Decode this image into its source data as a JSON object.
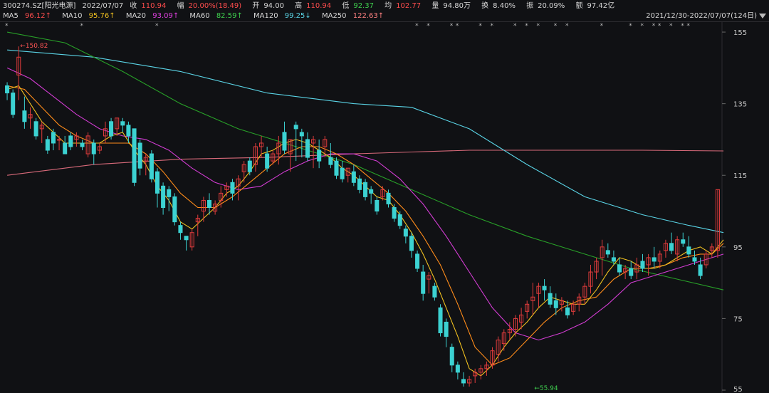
{
  "header": {
    "symbol": "300274.SZ[阳光电源]",
    "date": "2022/07/07",
    "close_label": "收",
    "close_value": "110.94",
    "change_label": "幅",
    "change_value": "20.00%(18.49)",
    "open_label": "开",
    "open_value": "94.00",
    "high_label": "高",
    "high_value": "110.94",
    "low_label": "低",
    "low_value": "92.37",
    "avg_label": "均",
    "avg_value": "102.77",
    "volume_label": "量",
    "volume_value": "94.80万",
    "turnover_label": "换",
    "turnover_value": "8.40%",
    "amplitude_label": "振",
    "amplitude_value": "20.09%",
    "amount_label": "额",
    "amount_value": "97.42亿",
    "range_text": "2021/12/30-2022/07/07(124日)"
  },
  "ma_legend": [
    {
      "name": "MA5",
      "value": "96.12↑",
      "color": "#ff4d4d"
    },
    {
      "name": "MA10",
      "value": "95.76↑",
      "color": "#f0c020"
    },
    {
      "name": "MA20",
      "value": "93.09↑",
      "color": "#e040e0"
    },
    {
      "name": "MA60",
      "value": "82.59↑",
      "color": "#2ecc40"
    },
    {
      "name": "MA120",
      "value": "99.25↓",
      "color": "#5ad4e6"
    },
    {
      "name": "MA250",
      "value": "122.63↑",
      "color": "#ff8080"
    }
  ],
  "colors": {
    "up": "#e03c3c",
    "down": "#3cd2d2",
    "ma5": "#f0c020",
    "ma10": "#ff8c1a",
    "ma20": "#d23cd2",
    "ma60": "#28a028",
    "ma120": "#5ad4e6",
    "ma250": "#d96a7a"
  },
  "chart_data": {
    "type": "candlestick",
    "y_ticks": [
      "155",
      "135",
      "115",
      "95",
      "75",
      "55"
    ],
    "ylim": [
      55,
      157
    ],
    "annotations": [
      {
        "text": "←150.82",
        "value": 150.82,
        "index": 2
      },
      {
        "text": "←55.94",
        "value": 55.94,
        "index": 91
      }
    ],
    "candles": [
      [
        140,
        141,
        136,
        138
      ],
      [
        138,
        139,
        131,
        132
      ],
      [
        143,
        151,
        136,
        148
      ],
      [
        133,
        137,
        128,
        130
      ],
      [
        131,
        134,
        128,
        132
      ],
      [
        130,
        131,
        125,
        126
      ],
      [
        128,
        130,
        124,
        129
      ],
      [
        125,
        126,
        121,
        122
      ],
      [
        127,
        128,
        122,
        124
      ],
      [
        125,
        126,
        122,
        125
      ],
      [
        124,
        126,
        121,
        121
      ],
      [
        126,
        127,
        122,
        123
      ],
      [
        125,
        127,
        123,
        126
      ],
      [
        124,
        125,
        122,
        123
      ],
      [
        121,
        127,
        120,
        126
      ],
      [
        124,
        125,
        118,
        121
      ],
      [
        122,
        124,
        121,
        123
      ],
      [
        126,
        130,
        124,
        128
      ],
      [
        130,
        131,
        125,
        126
      ],
      [
        128,
        131,
        126,
        131
      ],
      [
        130,
        131,
        127,
        129
      ],
      [
        129,
        130,
        124,
        126
      ],
      [
        128,
        128,
        112,
        113
      ],
      [
        124,
        125,
        115,
        117
      ],
      [
        119,
        121,
        115,
        120
      ],
      [
        121,
        122,
        113,
        114
      ],
      [
        116,
        117,
        106,
        110
      ],
      [
        112,
        113,
        104,
        106
      ],
      [
        111,
        112,
        105,
        109
      ],
      [
        109,
        110,
        101,
        102
      ],
      [
        101,
        102,
        97,
        99
      ],
      [
        98,
        98,
        94,
        97
      ],
      [
        95,
        100,
        94,
        99
      ],
      [
        102,
        104,
        98,
        103
      ],
      [
        105,
        109,
        102,
        108
      ],
      [
        108,
        110,
        104,
        106
      ],
      [
        105,
        108,
        104,
        107
      ],
      [
        108,
        112,
        106,
        110
      ],
      [
        111,
        113,
        109,
        112
      ],
      [
        113,
        114,
        108,
        110
      ],
      [
        112,
        115,
        108,
        114
      ],
      [
        116,
        119,
        113,
        118
      ],
      [
        119,
        120,
        115,
        116
      ],
      [
        118,
        124,
        116,
        123
      ],
      [
        123,
        126,
        120,
        124
      ],
      [
        121,
        123,
        116,
        117
      ],
      [
        119,
        122,
        118,
        121
      ],
      [
        121,
        126,
        118,
        124
      ],
      [
        127,
        130,
        121,
        122
      ],
      [
        121,
        125,
        116,
        125
      ],
      [
        129,
        130,
        119,
        128
      ],
      [
        127,
        128,
        120,
        126
      ],
      [
        125,
        127,
        119,
        120
      ],
      [
        124,
        126,
        117,
        125
      ],
      [
        122,
        125,
        117,
        119
      ],
      [
        123,
        126,
        120,
        125
      ],
      [
        120,
        124,
        117,
        118
      ],
      [
        119,
        120,
        114,
        115
      ],
      [
        117,
        119,
        113,
        114
      ],
      [
        115,
        117,
        113,
        117
      ],
      [
        116,
        118,
        112,
        113
      ],
      [
        114,
        115,
        110,
        111
      ],
      [
        113,
        114,
        108,
        109
      ],
      [
        111,
        112,
        107,
        110
      ],
      [
        108,
        109,
        104,
        105
      ],
      [
        109,
        112,
        108,
        111
      ],
      [
        110,
        111,
        106,
        107
      ],
      [
        106,
        107,
        102,
        103
      ],
      [
        104,
        105,
        100,
        101
      ],
      [
        100,
        101,
        96,
        98
      ],
      [
        98,
        99,
        92,
        94
      ],
      [
        93,
        94,
        88,
        89
      ],
      [
        88,
        90,
        80,
        82
      ],
      [
        86,
        88,
        82,
        87
      ],
      [
        84,
        85,
        80,
        81
      ],
      [
        78,
        79,
        70,
        71
      ],
      [
        74,
        75,
        67,
        70
      ],
      [
        67,
        68,
        60,
        62
      ],
      [
        62,
        63,
        58,
        60
      ],
      [
        58,
        60,
        56,
        57
      ],
      [
        57,
        59,
        56,
        58
      ],
      [
        59,
        61,
        57,
        60
      ],
      [
        60,
        62,
        58,
        61
      ],
      [
        61,
        63,
        59,
        62
      ],
      [
        62,
        67,
        61,
        66
      ],
      [
        65,
        70,
        63,
        69
      ],
      [
        68,
        72,
        66,
        71
      ],
      [
        71,
        74,
        69,
        72
      ],
      [
        72,
        76,
        70,
        75
      ],
      [
        74,
        78,
        72,
        76
      ],
      [
        77,
        80,
        75,
        79
      ],
      [
        80,
        85,
        76,
        81
      ],
      [
        82,
        85,
        78,
        84
      ],
      [
        84,
        86,
        80,
        83
      ],
      [
        82,
        84,
        78,
        79
      ],
      [
        80,
        82,
        76,
        78
      ],
      [
        79,
        81,
        77,
        80
      ],
      [
        78,
        80,
        75,
        76
      ],
      [
        77,
        80,
        76,
        79
      ],
      [
        79,
        82,
        77,
        81
      ],
      [
        81,
        85,
        79,
        84
      ],
      [
        84,
        90,
        82,
        88
      ],
      [
        88,
        92,
        86,
        91
      ],
      [
        92,
        97,
        87,
        95
      ],
      [
        94,
        96,
        92,
        93
      ],
      [
        92,
        94,
        90,
        91
      ],
      [
        90,
        92,
        87,
        88
      ],
      [
        88,
        90,
        86,
        89
      ],
      [
        89,
        91,
        86,
        87
      ],
      [
        88,
        92,
        86,
        90
      ],
      [
        91,
        93,
        88,
        89
      ],
      [
        90,
        93,
        87,
        92
      ],
      [
        92,
        95,
        89,
        91
      ],
      [
        91,
        94,
        89,
        93
      ],
      [
        94,
        97,
        92,
        96
      ],
      [
        96,
        99,
        93,
        94
      ],
      [
        93,
        98,
        91,
        97
      ],
      [
        97,
        99,
        95,
        96
      ],
      [
        95,
        98,
        92,
        93
      ],
      [
        92,
        94,
        90,
        91
      ],
      [
        90,
        92,
        86,
        87
      ],
      [
        90,
        94,
        89,
        93
      ],
      [
        94,
        96,
        92,
        95
      ],
      [
        94,
        111,
        92,
        111
      ]
    ],
    "ma5": [
      [
        0,
        139
      ],
      [
        2,
        140
      ],
      [
        4,
        135
      ],
      [
        6,
        130
      ],
      [
        8,
        127
      ],
      [
        10,
        124
      ],
      [
        12,
        124
      ],
      [
        14,
        124
      ],
      [
        16,
        124
      ],
      [
        18,
        126
      ],
      [
        20,
        127
      ],
      [
        22,
        122
      ],
      [
        24,
        118
      ],
      [
        26,
        112
      ],
      [
        28,
        108
      ],
      [
        30,
        102
      ],
      [
        32,
        100
      ],
      [
        34,
        103
      ],
      [
        36,
        106
      ],
      [
        38,
        110
      ],
      [
        40,
        112
      ],
      [
        42,
        116
      ],
      [
        44,
        121
      ],
      [
        46,
        122
      ],
      [
        48,
        124
      ],
      [
        50,
        125
      ],
      [
        52,
        124
      ],
      [
        54,
        122
      ],
      [
        56,
        120
      ],
      [
        58,
        117
      ],
      [
        60,
        115
      ],
      [
        62,
        112
      ],
      [
        64,
        109
      ],
      [
        66,
        108
      ],
      [
        68,
        104
      ],
      [
        70,
        99
      ],
      [
        72,
        93
      ],
      [
        74,
        86
      ],
      [
        76,
        78
      ],
      [
        78,
        70
      ],
      [
        80,
        61
      ],
      [
        82,
        59
      ],
      [
        84,
        62
      ],
      [
        86,
        67
      ],
      [
        88,
        71
      ],
      [
        90,
        74
      ],
      [
        92,
        78
      ],
      [
        94,
        81
      ],
      [
        96,
        80
      ],
      [
        98,
        79
      ],
      [
        100,
        79
      ],
      [
        102,
        83
      ],
      [
        104,
        88
      ],
      [
        106,
        92
      ],
      [
        108,
        91
      ],
      [
        110,
        89
      ],
      [
        112,
        89
      ],
      [
        114,
        90
      ],
      [
        116,
        92
      ],
      [
        118,
        94
      ],
      [
        120,
        95
      ],
      [
        122,
        93
      ],
      [
        124,
        97
      ]
    ],
    "ma10": [
      [
        0,
        140
      ],
      [
        3,
        139
      ],
      [
        6,
        134
      ],
      [
        9,
        129
      ],
      [
        12,
        126
      ],
      [
        15,
        124
      ],
      [
        18,
        124
      ],
      [
        21,
        124
      ],
      [
        24,
        121
      ],
      [
        27,
        116
      ],
      [
        30,
        110
      ],
      [
        33,
        106
      ],
      [
        36,
        106
      ],
      [
        39,
        109
      ],
      [
        42,
        113
      ],
      [
        45,
        117
      ],
      [
        48,
        121
      ],
      [
        51,
        123
      ],
      [
        54,
        123
      ],
      [
        57,
        121
      ],
      [
        60,
        118
      ],
      [
        63,
        114
      ],
      [
        66,
        110
      ],
      [
        69,
        105
      ],
      [
        72,
        98
      ],
      [
        75,
        90
      ],
      [
        78,
        79
      ],
      [
        81,
        67
      ],
      [
        84,
        62
      ],
      [
        87,
        64
      ],
      [
        90,
        69
      ],
      [
        93,
        74
      ],
      [
        96,
        78
      ],
      [
        99,
        80
      ],
      [
        102,
        81
      ],
      [
        105,
        86
      ],
      [
        108,
        89
      ],
      [
        111,
        89
      ],
      [
        114,
        90
      ],
      [
        117,
        92
      ],
      [
        120,
        93
      ],
      [
        122,
        93
      ],
      [
        124,
        96
      ]
    ],
    "ma20": [
      [
        0,
        145
      ],
      [
        4,
        142
      ],
      [
        8,
        137
      ],
      [
        12,
        132
      ],
      [
        16,
        128
      ],
      [
        20,
        126
      ],
      [
        24,
        125
      ],
      [
        28,
        122
      ],
      [
        32,
        117
      ],
      [
        36,
        113
      ],
      [
        40,
        111
      ],
      [
        44,
        112
      ],
      [
        48,
        116
      ],
      [
        52,
        119
      ],
      [
        56,
        121
      ],
      [
        60,
        121
      ],
      [
        64,
        119
      ],
      [
        68,
        114
      ],
      [
        72,
        107
      ],
      [
        76,
        98
      ],
      [
        80,
        88
      ],
      [
        84,
        78
      ],
      [
        88,
        71
      ],
      [
        92,
        69
      ],
      [
        96,
        71
      ],
      [
        100,
        74
      ],
      [
        104,
        79
      ],
      [
        108,
        85
      ],
      [
        112,
        87
      ],
      [
        116,
        89
      ],
      [
        120,
        91
      ],
      [
        124,
        93
      ]
    ],
    "ma60": [
      [
        0,
        155
      ],
      [
        10,
        152
      ],
      [
        20,
        144
      ],
      [
        30,
        135
      ],
      [
        40,
        128
      ],
      [
        50,
        123
      ],
      [
        60,
        118
      ],
      [
        70,
        111
      ],
      [
        80,
        104
      ],
      [
        90,
        98
      ],
      [
        100,
        93
      ],
      [
        108,
        89
      ],
      [
        116,
        86
      ],
      [
        124,
        83
      ]
    ],
    "ma120": [
      [
        0,
        150
      ],
      [
        15,
        148
      ],
      [
        30,
        144
      ],
      [
        45,
        138
      ],
      [
        60,
        135
      ],
      [
        70,
        134
      ],
      [
        80,
        128
      ],
      [
        90,
        118
      ],
      [
        100,
        109
      ],
      [
        110,
        104
      ],
      [
        118,
        101
      ],
      [
        124,
        99
      ]
    ],
    "ma250": [
      [
        0,
        115
      ],
      [
        15,
        118
      ],
      [
        30,
        119.5
      ],
      [
        45,
        120
      ],
      [
        60,
        121
      ],
      [
        70,
        121.5
      ],
      [
        80,
        122
      ],
      [
        95,
        122
      ],
      [
        110,
        122
      ],
      [
        124,
        121.8
      ]
    ],
    "event_marks": [
      0,
      13,
      26,
      71,
      73,
      77,
      78,
      82,
      84,
      88,
      90,
      92,
      95,
      97,
      103,
      108,
      110,
      112,
      113,
      115,
      117,
      118
    ]
  }
}
